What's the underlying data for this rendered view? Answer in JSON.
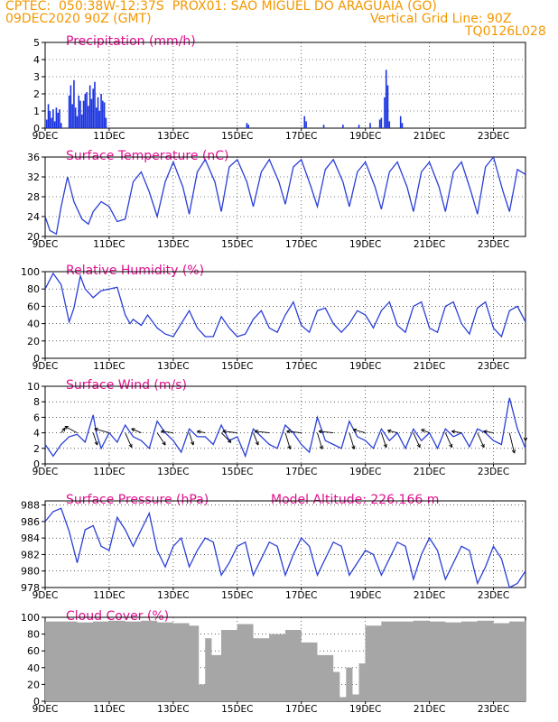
{
  "header": {
    "line1_left": "CPTEC:  050:38W-12:37S  PROX01: SAO MIGUEL DO ARAGUAIA (GO)",
    "line2_left": "09DEC2020 90Z (GMT)",
    "line2_right": "Vertical Grid Line: 90Z",
    "line3_right": "TQ0126L028"
  },
  "colors": {
    "header": "#f39700",
    "title": "#e0108e",
    "line": "#2a3fd6",
    "bar": "#1a33e0",
    "cloud": "#a6a6a6",
    "grid": "#000000"
  },
  "x_ticks": [
    "9DEC",
    "11DEC",
    "13DEC",
    "15DEC",
    "17DEC",
    "19DEC",
    "21DEC",
    "23DEC"
  ],
  "x_ticks_day": [
    0,
    2,
    4,
    6,
    8,
    10,
    12,
    14
  ],
  "chart_data": [
    {
      "id": "precip",
      "type": "bar",
      "title": "Precipitation (mm/h)",
      "ylim": [
        0,
        5
      ],
      "yticks": [
        0,
        1,
        2,
        3,
        4,
        5
      ],
      "grid": true,
      "x_days": [
        0.05,
        0.1,
        0.15,
        0.2,
        0.25,
        0.3,
        0.35,
        0.4,
        0.45,
        0.5,
        0.75,
        0.8,
        0.85,
        0.9,
        0.95,
        1.0,
        1.05,
        1.1,
        1.15,
        1.2,
        1.25,
        1.3,
        1.35,
        1.4,
        1.45,
        1.5,
        1.55,
        1.6,
        1.65,
        1.7,
        1.75,
        1.8,
        1.85,
        1.9,
        6.3,
        6.35,
        8.1,
        8.15,
        8.7,
        9.3,
        9.8,
        10.15,
        10.45,
        10.5,
        10.6,
        10.65,
        10.7,
        10.75,
        11.1,
        11.15
      ],
      "values": [
        0.5,
        1.4,
        1.0,
        0.6,
        1.1,
        0.4,
        1.2,
        0.9,
        1.1,
        0.3,
        1.9,
        2.5,
        1.4,
        2.8,
        1.2,
        0.7,
        1.9,
        1.6,
        0.8,
        1.6,
        2.0,
        2.1,
        1.3,
        2.5,
        1.7,
        2.3,
        2.7,
        1.2,
        1.8,
        1.0,
        2.0,
        1.6,
        1.5,
        0.6,
        0.3,
        0.2,
        0.7,
        0.4,
        0.2,
        0.2,
        0.2,
        0.3,
        0.5,
        0.6,
        1.8,
        3.4,
        2.5,
        0.4,
        0.7,
        0.3
      ]
    },
    {
      "id": "temp",
      "type": "line",
      "title": "Surface Temperature (nC)",
      "ylim": [
        20,
        36
      ],
      "yticks": [
        20,
        24,
        28,
        32,
        36
      ],
      "grid": true,
      "x_days": [
        0,
        0.15,
        0.35,
        0.5,
        0.7,
        0.9,
        1.15,
        1.35,
        1.5,
        1.75,
        2.0,
        2.25,
        2.5,
        2.75,
        3.0,
        3.25,
        3.5,
        3.75,
        4.0,
        4.3,
        4.5,
        4.75,
        5.0,
        5.3,
        5.5,
        5.75,
        6.0,
        6.3,
        6.5,
        6.75,
        7.0,
        7.3,
        7.5,
        7.75,
        8.0,
        8.3,
        8.5,
        8.75,
        9.0,
        9.3,
        9.5,
        9.75,
        10.0,
        10.3,
        10.5,
        10.75,
        11.0,
        11.3,
        11.5,
        11.75,
        12.0,
        12.3,
        12.5,
        12.75,
        13.0,
        13.3,
        13.5,
        13.75,
        14.0,
        14.3,
        14.5,
        14.75,
        15.0
      ],
      "values": [
        24,
        21.2,
        20.5,
        26,
        32,
        27,
        23.5,
        22.5,
        25,
        27,
        26,
        23,
        23.5,
        31,
        33,
        29,
        24,
        31,
        35,
        30,
        24.5,
        33,
        35.5,
        31,
        25,
        34,
        35.5,
        31,
        26,
        33,
        35.5,
        31,
        26.5,
        34,
        35.5,
        30,
        26,
        33.5,
        35.5,
        31,
        26,
        33,
        35,
        30,
        25.5,
        33,
        35,
        30,
        25,
        33,
        35,
        30,
        25,
        33,
        35,
        29,
        24.5,
        34,
        36,
        29,
        25,
        33.5,
        32.5
      ]
    },
    {
      "id": "rh",
      "type": "line",
      "title": "Relative Humidity (%)",
      "ylim": [
        0,
        100
      ],
      "yticks": [
        0,
        20,
        40,
        60,
        80,
        100
      ],
      "grid": true,
      "x_days": [
        0,
        0.25,
        0.5,
        0.75,
        0.9,
        1.1,
        1.25,
        1.5,
        1.75,
        2.0,
        2.25,
        2.5,
        2.65,
        2.75,
        3.0,
        3.2,
        3.5,
        3.75,
        4.0,
        4.25,
        4.5,
        4.75,
        5.0,
        5.25,
        5.5,
        5.75,
        6.0,
        6.25,
        6.5,
        6.75,
        7.0,
        7.25,
        7.5,
        7.75,
        8.0,
        8.25,
        8.5,
        8.75,
        9.0,
        9.25,
        9.5,
        9.75,
        10.0,
        10.25,
        10.5,
        10.75,
        11.0,
        11.25,
        11.5,
        11.75,
        12.0,
        12.25,
        12.5,
        12.75,
        13.0,
        13.25,
        13.5,
        13.75,
        14.0,
        14.25,
        14.5,
        14.75,
        15.0
      ],
      "values": [
        80,
        98,
        85,
        42,
        58,
        95,
        80,
        70,
        78,
        80,
        82,
        50,
        40,
        45,
        38,
        50,
        35,
        28,
        25,
        40,
        55,
        35,
        25,
        25,
        48,
        35,
        25,
        28,
        45,
        55,
        35,
        30,
        50,
        65,
        38,
        30,
        55,
        58,
        40,
        30,
        40,
        55,
        50,
        35,
        55,
        65,
        38,
        30,
        60,
        65,
        35,
        30,
        60,
        65,
        40,
        28,
        58,
        65,
        35,
        25,
        55,
        60,
        42
      ]
    },
    {
      "id": "wind",
      "type": "line",
      "title": "Surface Wind (m/s)",
      "ylim": [
        0,
        10
      ],
      "yticks": [
        0,
        2,
        4,
        6,
        8,
        10
      ],
      "grid": true,
      "x_days": [
        0,
        0.25,
        0.5,
        0.75,
        1.0,
        1.25,
        1.5,
        1.6,
        1.75,
        2.0,
        2.25,
        2.5,
        2.75,
        3.0,
        3.25,
        3.5,
        3.75,
        4.0,
        4.25,
        4.5,
        4.75,
        5.0,
        5.25,
        5.5,
        5.75,
        6.0,
        6.25,
        6.5,
        6.75,
        7.0,
        7.25,
        7.5,
        7.75,
        8.0,
        8.25,
        8.5,
        8.75,
        9.0,
        9.25,
        9.5,
        9.75,
        10.0,
        10.25,
        10.5,
        10.75,
        11.0,
        11.25,
        11.5,
        11.75,
        12.0,
        12.25,
        12.5,
        12.75,
        13.0,
        13.25,
        13.5,
        13.75,
        14.0,
        14.25,
        14.5,
        14.75,
        15.0
      ],
      "values": [
        2.5,
        1,
        2.5,
        3.5,
        3.8,
        2.8,
        6.3,
        4,
        2,
        4,
        2.8,
        5,
        3.5,
        3,
        2,
        5.5,
        4,
        3,
        1.5,
        4.5,
        3.5,
        3.5,
        2.5,
        5,
        3,
        3.5,
        1,
        4.5,
        3.5,
        2.5,
        2,
        5,
        4,
        2.5,
        1.5,
        6,
        3,
        2.5,
        2,
        5.5,
        3.5,
        3,
        2,
        4.5,
        3,
        4,
        2,
        4.5,
        3,
        4,
        2,
        4.5,
        3.5,
        4,
        2.2,
        4.5,
        4,
        3,
        2.5,
        8.5,
        4.5,
        2
      ],
      "arrows": {
        "x_days": [
          0.5,
          1.0,
          1.5,
          2.0,
          2.5,
          3.0,
          3.5,
          4.0,
          4.5,
          5.0,
          5.5,
          6.0,
          6.5,
          7.0,
          7.5,
          8.0,
          8.5,
          9.0,
          9.5,
          10.0,
          10.5,
          11.0,
          11.5,
          12.0,
          12.5,
          13.0,
          13.5,
          14.0,
          14.5,
          15.0
        ],
        "u": [
          0.5,
          -1.5,
          0.5,
          -1.8,
          0.8,
          -1.2,
          1.0,
          -1.5,
          0.5,
          -1.0,
          1.2,
          -1.8,
          0.6,
          -1.8,
          0.6,
          -1.8,
          0.6,
          -1.8,
          0.6,
          -1.5,
          0.6,
          -1.2,
          0.8,
          -1.0,
          0.8,
          -1.2,
          0.8,
          -1.2,
          0.6,
          0
        ],
        "v": [
          0.6,
          0.8,
          -1.5,
          0.5,
          -1.8,
          0.5,
          -1.5,
          0.2,
          -1.5,
          0.2,
          -1.2,
          0.2,
          -1.5,
          0.2,
          -2.0,
          0.2,
          -2.0,
          0.2,
          -2.0,
          0.4,
          -1.8,
          0.3,
          -1.8,
          0.4,
          -1.8,
          0.2,
          -1.8,
          0.2,
          -2.5,
          -1.0
        ]
      }
    },
    {
      "id": "pressure",
      "type": "line",
      "title": "Surface Pressure (hPa)",
      "annotation": "Model Altitude: 226.166 m",
      "ylim": [
        978,
        988.5
      ],
      "yticks": [
        978,
        980,
        982,
        984,
        986,
        988
      ],
      "grid": true,
      "x_days": [
        0,
        0.25,
        0.5,
        0.75,
        1.0,
        1.25,
        1.5,
        1.75,
        2.0,
        2.25,
        2.5,
        2.75,
        3.0,
        3.25,
        3.5,
        3.75,
        4.0,
        4.25,
        4.5,
        4.75,
        5.0,
        5.25,
        5.5,
        5.75,
        6.0,
        6.25,
        6.5,
        6.75,
        7.0,
        7.25,
        7.5,
        7.75,
        8.0,
        8.25,
        8.5,
        8.75,
        9.0,
        9.25,
        9.5,
        9.75,
        10.0,
        10.25,
        10.5,
        10.75,
        11.0,
        11.25,
        11.5,
        11.75,
        12.0,
        12.25,
        12.5,
        12.75,
        13.0,
        13.25,
        13.5,
        13.75,
        14.0,
        14.25,
        14.5,
        14.75,
        15.0
      ],
      "values": [
        986,
        987.2,
        987.6,
        984.8,
        981,
        985,
        985.5,
        983,
        982.5,
        986.5,
        985,
        983,
        985,
        987,
        982.5,
        980.5,
        983,
        984,
        980.5,
        982.5,
        984,
        983.5,
        979.5,
        981,
        983,
        983.5,
        979.5,
        981.5,
        983.5,
        983,
        979.5,
        982,
        984,
        983,
        979.5,
        981.5,
        983.5,
        983,
        979.5,
        981,
        982.5,
        982,
        979.5,
        981.5,
        983.5,
        983,
        979,
        982,
        984,
        982.5,
        979,
        981,
        983,
        982.5,
        978.5,
        980.5,
        983,
        981.5,
        978,
        978.5,
        980
      ]
    },
    {
      "id": "cloud",
      "type": "bar",
      "title": "Cloud Cover (%)",
      "ylim": [
        0,
        100
      ],
      "yticks": [
        0,
        20,
        40,
        60,
        80,
        100
      ],
      "grid": true,
      "x_days": [
        0,
        0.5,
        1.0,
        1.5,
        2.0,
        2.5,
        3.0,
        3.5,
        4.0,
        4.5,
        4.8,
        5.0,
        5.2,
        5.5,
        6.0,
        6.5,
        7.0,
        7.5,
        8.0,
        8.5,
        9.0,
        9.2,
        9.4,
        9.6,
        9.8,
        10.0,
        10.5,
        11.0,
        11.5,
        12.0,
        12.5,
        13.0,
        13.5,
        14.0,
        14.5,
        15.0
      ],
      "values": [
        95,
        95,
        94,
        95,
        96,
        95,
        96,
        94,
        93,
        90,
        20,
        75,
        55,
        85,
        92,
        75,
        80,
        85,
        70,
        55,
        35,
        5,
        40,
        8,
        45,
        90,
        95,
        95,
        96,
        95,
        94,
        95,
        96,
        93,
        95,
        96
      ]
    }
  ]
}
